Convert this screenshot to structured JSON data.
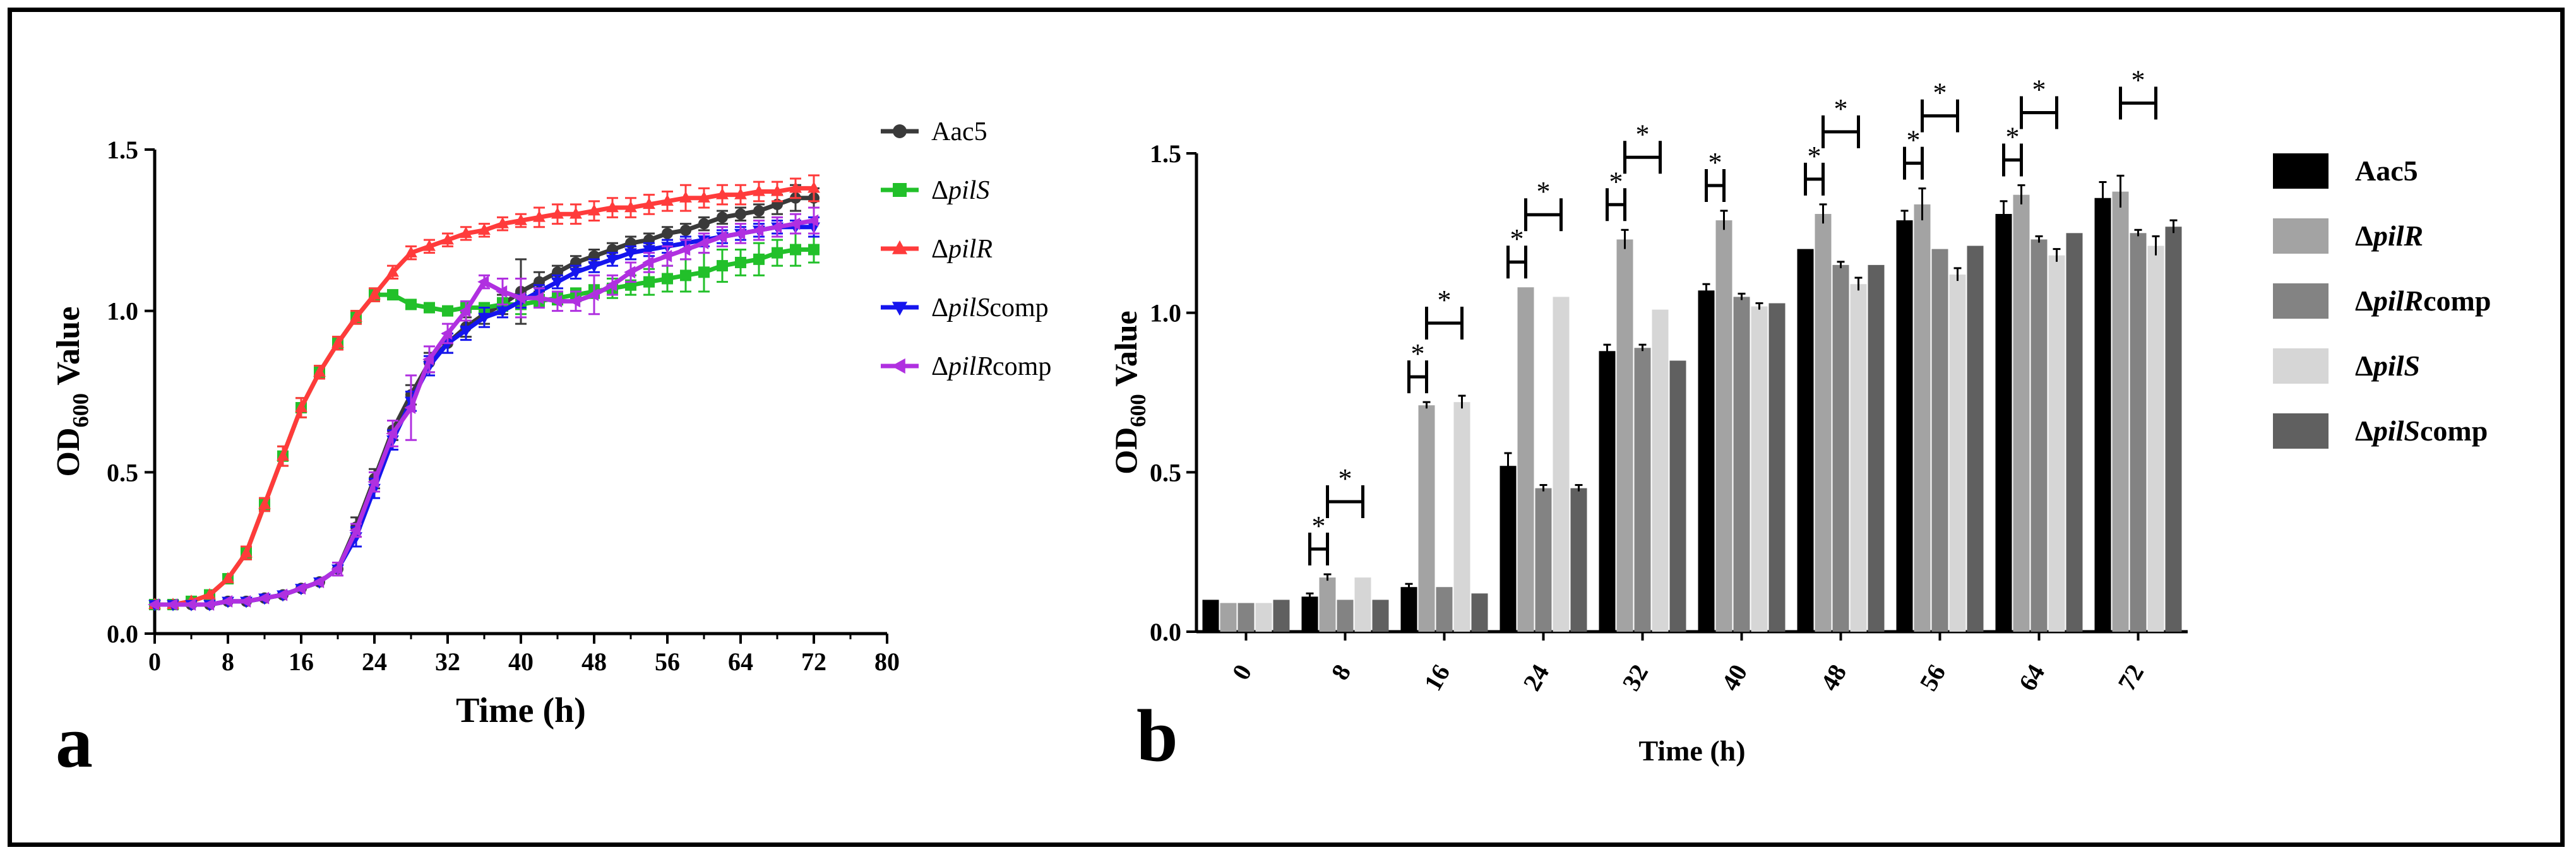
{
  "chart_data": [
    {
      "type": "line",
      "panel_label": "a",
      "xlabel": "Time (h)",
      "ylabel": {
        "main": "OD",
        "subscript": "600",
        "rest": " Value"
      },
      "xlim": [
        0,
        80
      ],
      "ylim": [
        0,
        1.5
      ],
      "x_ticks": [
        0,
        8,
        16,
        24,
        32,
        40,
        48,
        56,
        64,
        72,
        80
      ],
      "y_ticks": [
        0.0,
        0.5,
        1.0,
        1.5
      ],
      "series": [
        {
          "name": "Aac5",
          "name_prefix": "",
          "name_italic": "",
          "name_suffix": "Aac5",
          "color": "#3a3a3a",
          "marker": "circle",
          "x": [
            0,
            2,
            4,
            6,
            8,
            10,
            12,
            14,
            16,
            18,
            20,
            22,
            24,
            26,
            28,
            30,
            32,
            34,
            36,
            38,
            40,
            42,
            44,
            46,
            48,
            50,
            52,
            54,
            56,
            58,
            60,
            62,
            64,
            66,
            68,
            70,
            72
          ],
          "y": [
            0.09,
            0.09,
            0.09,
            0.09,
            0.1,
            0.1,
            0.11,
            0.12,
            0.14,
            0.16,
            0.2,
            0.33,
            0.48,
            0.63,
            0.74,
            0.84,
            0.9,
            0.95,
            0.99,
            1.02,
            1.06,
            1.09,
            1.12,
            1.15,
            1.17,
            1.19,
            1.21,
            1.22,
            1.24,
            1.25,
            1.27,
            1.29,
            1.3,
            1.31,
            1.33,
            1.35,
            1.35
          ],
          "err": [
            0.01,
            0.01,
            0.01,
            0.01,
            0.01,
            0.01,
            0.01,
            0.01,
            0.01,
            0.01,
            0.02,
            0.03,
            0.03,
            0.03,
            0.03,
            0.03,
            0.03,
            0.03,
            0.03,
            0.03,
            0.1,
            0.03,
            0.02,
            0.02,
            0.02,
            0.02,
            0.02,
            0.02,
            0.02,
            0.02,
            0.02,
            0.02,
            0.02,
            0.02,
            0.03,
            0.04,
            0.03
          ]
        },
        {
          "name": "ΔpilS",
          "name_prefix": "Δ",
          "name_italic": "pilS",
          "name_suffix": "",
          "color": "#22c02a",
          "marker": "square",
          "x": [
            0,
            2,
            4,
            6,
            8,
            10,
            12,
            14,
            16,
            18,
            20,
            22,
            24,
            26,
            28,
            30,
            32,
            34,
            36,
            38,
            40,
            42,
            44,
            46,
            48,
            50,
            52,
            54,
            56,
            58,
            60,
            62,
            64,
            66,
            68,
            70,
            72
          ],
          "y": [
            0.09,
            0.09,
            0.1,
            0.12,
            0.17,
            0.25,
            0.4,
            0.55,
            0.7,
            0.81,
            0.9,
            0.98,
            1.05,
            1.05,
            1.02,
            1.01,
            1.0,
            1.01,
            1.01,
            1.02,
            1.02,
            1.03,
            1.04,
            1.05,
            1.06,
            1.07,
            1.08,
            1.09,
            1.1,
            1.11,
            1.12,
            1.14,
            1.15,
            1.16,
            1.18,
            1.19,
            1.19
          ],
          "err": [
            0.01,
            0.01,
            0.01,
            0.01,
            0.01,
            0.02,
            0.02,
            0.03,
            0.03,
            0.02,
            0.02,
            0.02,
            0.02,
            0.01,
            0.01,
            0.01,
            0.01,
            0.01,
            0.01,
            0.02,
            0.03,
            0.02,
            0.02,
            0.02,
            0.02,
            0.03,
            0.03,
            0.04,
            0.04,
            0.05,
            0.06,
            0.05,
            0.04,
            0.05,
            0.04,
            0.05,
            0.04
          ]
        },
        {
          "name": "ΔpilR",
          "name_prefix": "Δ",
          "name_italic": "pilR",
          "name_suffix": "",
          "color": "#ff3b3b",
          "marker": "triangle-up",
          "x": [
            0,
            2,
            4,
            6,
            8,
            10,
            12,
            14,
            16,
            18,
            20,
            22,
            24,
            26,
            28,
            30,
            32,
            34,
            36,
            38,
            40,
            42,
            44,
            46,
            48,
            50,
            52,
            54,
            56,
            58,
            60,
            62,
            64,
            66,
            68,
            70,
            72
          ],
          "y": [
            0.09,
            0.09,
            0.1,
            0.12,
            0.17,
            0.25,
            0.4,
            0.55,
            0.7,
            0.81,
            0.9,
            0.98,
            1.05,
            1.12,
            1.18,
            1.2,
            1.22,
            1.24,
            1.25,
            1.27,
            1.28,
            1.29,
            1.3,
            1.3,
            1.31,
            1.32,
            1.32,
            1.33,
            1.34,
            1.35,
            1.35,
            1.36,
            1.36,
            1.37,
            1.37,
            1.38,
            1.38
          ],
          "err": [
            0.01,
            0.01,
            0.01,
            0.01,
            0.01,
            0.02,
            0.02,
            0.03,
            0.03,
            0.02,
            0.02,
            0.02,
            0.02,
            0.02,
            0.02,
            0.02,
            0.02,
            0.02,
            0.02,
            0.02,
            0.02,
            0.03,
            0.03,
            0.03,
            0.03,
            0.03,
            0.03,
            0.03,
            0.03,
            0.04,
            0.03,
            0.03,
            0.03,
            0.03,
            0.03,
            0.03,
            0.04
          ]
        },
        {
          "name": "ΔpilScomp",
          "name_prefix": "Δ",
          "name_italic": "pilS",
          "name_suffix": "comp",
          "color": "#1515ee",
          "marker": "triangle-down",
          "x": [
            0,
            2,
            4,
            6,
            8,
            10,
            12,
            14,
            16,
            18,
            20,
            22,
            24,
            26,
            28,
            30,
            32,
            34,
            36,
            38,
            40,
            42,
            44,
            46,
            48,
            50,
            52,
            54,
            56,
            58,
            60,
            62,
            64,
            66,
            68,
            70,
            72
          ],
          "y": [
            0.09,
            0.09,
            0.09,
            0.09,
            0.1,
            0.1,
            0.11,
            0.12,
            0.14,
            0.16,
            0.2,
            0.3,
            0.45,
            0.6,
            0.72,
            0.83,
            0.9,
            0.94,
            0.98,
            1.0,
            1.03,
            1.06,
            1.09,
            1.12,
            1.14,
            1.16,
            1.18,
            1.19,
            1.2,
            1.21,
            1.22,
            1.23,
            1.24,
            1.25,
            1.26,
            1.26,
            1.26
          ],
          "err": [
            0.01,
            0.01,
            0.01,
            0.01,
            0.01,
            0.01,
            0.01,
            0.01,
            0.01,
            0.01,
            0.02,
            0.03,
            0.03,
            0.03,
            0.03,
            0.03,
            0.03,
            0.03,
            0.03,
            0.02,
            0.02,
            0.02,
            0.02,
            0.02,
            0.02,
            0.02,
            0.02,
            0.02,
            0.02,
            0.02,
            0.02,
            0.02,
            0.02,
            0.02,
            0.02,
            0.02,
            0.03
          ]
        },
        {
          "name": "ΔpilRcomp",
          "name_prefix": "Δ",
          "name_italic": "pilR",
          "name_suffix": "comp",
          "color": "#b030e0",
          "marker": "triangle-left",
          "x": [
            0,
            2,
            4,
            6,
            8,
            10,
            12,
            14,
            16,
            18,
            20,
            22,
            24,
            26,
            28,
            30,
            32,
            34,
            36,
            38,
            40,
            42,
            44,
            46,
            48,
            50,
            52,
            54,
            56,
            58,
            60,
            62,
            64,
            66,
            68,
            70,
            72
          ],
          "y": [
            0.09,
            0.09,
            0.09,
            0.09,
            0.1,
            0.1,
            0.11,
            0.12,
            0.14,
            0.16,
            0.2,
            0.32,
            0.47,
            0.62,
            0.7,
            0.85,
            0.93,
            1.0,
            1.09,
            1.06,
            1.04,
            1.04,
            1.03,
            1.03,
            1.05,
            1.08,
            1.12,
            1.15,
            1.17,
            1.19,
            1.21,
            1.23,
            1.24,
            1.25,
            1.26,
            1.27,
            1.28
          ],
          "err": [
            0.01,
            0.01,
            0.01,
            0.01,
            0.01,
            0.01,
            0.01,
            0.01,
            0.01,
            0.01,
            0.02,
            0.02,
            0.03,
            0.04,
            0.1,
            0.04,
            0.03,
            0.03,
            0.02,
            0.04,
            0.06,
            0.03,
            0.03,
            0.03,
            0.06,
            0.03,
            0.03,
            0.03,
            0.03,
            0.03,
            0.03,
            0.03,
            0.03,
            0.03,
            0.03,
            0.03,
            0.04
          ]
        }
      ]
    },
    {
      "type": "bar",
      "panel_label": "b",
      "xlabel": "Time (h)",
      "ylabel": {
        "main": "OD",
        "subscript": "600",
        "rest": " Value"
      },
      "ylim": [
        0,
        1.5
      ],
      "y_ticks": [
        0.0,
        0.5,
        1.0,
        1.5
      ],
      "categories": [
        "0",
        "8",
        "16",
        "24",
        "32",
        "40",
        "48",
        "56",
        "64",
        "72"
      ],
      "series": [
        {
          "name": "Aac5",
          "name_prefix": "",
          "name_italic": "",
          "name_suffix": "Aac5",
          "color": "#000000",
          "values": [
            0.1,
            0.11,
            0.14,
            0.52,
            0.88,
            1.07,
            1.2,
            1.29,
            1.31,
            1.36
          ],
          "err": [
            0.0,
            0.01,
            0.01,
            0.04,
            0.02,
            0.02,
            0.0,
            0.03,
            0.04,
            0.05
          ]
        },
        {
          "name": "ΔpilR",
          "name_prefix": "Δ",
          "name_italic": "pilR",
          "name_suffix": "",
          "color": "#a3a3a3",
          "values": [
            0.09,
            0.17,
            0.71,
            1.08,
            1.23,
            1.29,
            1.31,
            1.34,
            1.37,
            1.38
          ],
          "err": [
            0.0,
            0.01,
            0.01,
            0.0,
            0.03,
            0.03,
            0.03,
            0.05,
            0.03,
            0.05
          ]
        },
        {
          "name": "ΔpilRcomp",
          "name_prefix": "Δ",
          "name_italic": "pilR",
          "name_suffix": "comp",
          "color": "#838383",
          "values": [
            0.09,
            0.1,
            0.14,
            0.45,
            0.89,
            1.05,
            1.15,
            1.2,
            1.23,
            1.25
          ],
          "err": [
            0.0,
            0.0,
            0.0,
            0.01,
            0.01,
            0.01,
            0.01,
            0.0,
            0.01,
            0.01
          ]
        },
        {
          "name": "ΔpilS",
          "name_prefix": "Δ",
          "name_italic": "pilS",
          "name_suffix": "",
          "color": "#d6d6d6",
          "values": [
            0.09,
            0.17,
            0.72,
            1.05,
            1.01,
            1.02,
            1.09,
            1.12,
            1.18,
            1.21
          ],
          "err": [
            0.0,
            0.0,
            0.02,
            0.0,
            0.0,
            0.01,
            0.02,
            0.02,
            0.02,
            0.03
          ]
        },
        {
          "name": "ΔpilScomp",
          "name_prefix": "Δ",
          "name_italic": "pilS",
          "name_suffix": "comp",
          "color": "#606060",
          "values": [
            0.1,
            0.1,
            0.12,
            0.45,
            0.85,
            1.03,
            1.15,
            1.21,
            1.25,
            1.27
          ],
          "err": [
            0.0,
            0.0,
            0.0,
            0.01,
            0.0,
            0.0,
            0.0,
            0.0,
            0.0,
            0.02
          ]
        }
      ],
      "annotations": [
        {
          "category": "8",
          "label": "*",
          "comparison": "Aac5 vs ΔpilR"
        },
        {
          "category": "8",
          "label": "*",
          "comparison": "ΔpilR vs ΔpilS"
        },
        {
          "category": "16",
          "label": "*",
          "comparison": "Aac5 vs ΔpilR"
        },
        {
          "category": "16",
          "label": "*",
          "comparison": "ΔpilR vs ΔpilS"
        },
        {
          "category": "24",
          "label": "*",
          "comparison": "Aac5 vs ΔpilR"
        },
        {
          "category": "24",
          "label": "*",
          "comparison": "ΔpilR vs ΔpilS"
        },
        {
          "category": "32",
          "label": "*",
          "comparison": "Aac5 vs ΔpilR"
        },
        {
          "category": "32",
          "label": "*",
          "comparison": "ΔpilR vs ΔpilS"
        },
        {
          "category": "40",
          "label": "*",
          "comparison": "Aac5 vs ΔpilR"
        },
        {
          "category": "48",
          "label": "*",
          "comparison": "Aac5 vs ΔpilR"
        },
        {
          "category": "48",
          "label": "*",
          "comparison": "ΔpilR vs ΔpilS"
        },
        {
          "category": "56",
          "label": "*",
          "comparison": "Aac5 vs ΔpilR"
        },
        {
          "category": "56",
          "label": "*",
          "comparison": "ΔpilR vs ΔpilS"
        },
        {
          "category": "64",
          "label": "*",
          "comparison": "Aac5 vs ΔpilR"
        },
        {
          "category": "64",
          "label": "*",
          "comparison": "ΔpilR vs ΔpilS"
        },
        {
          "category": "72",
          "label": "*",
          "comparison": "ΔpilR vs ΔpilS"
        }
      ]
    }
  ]
}
